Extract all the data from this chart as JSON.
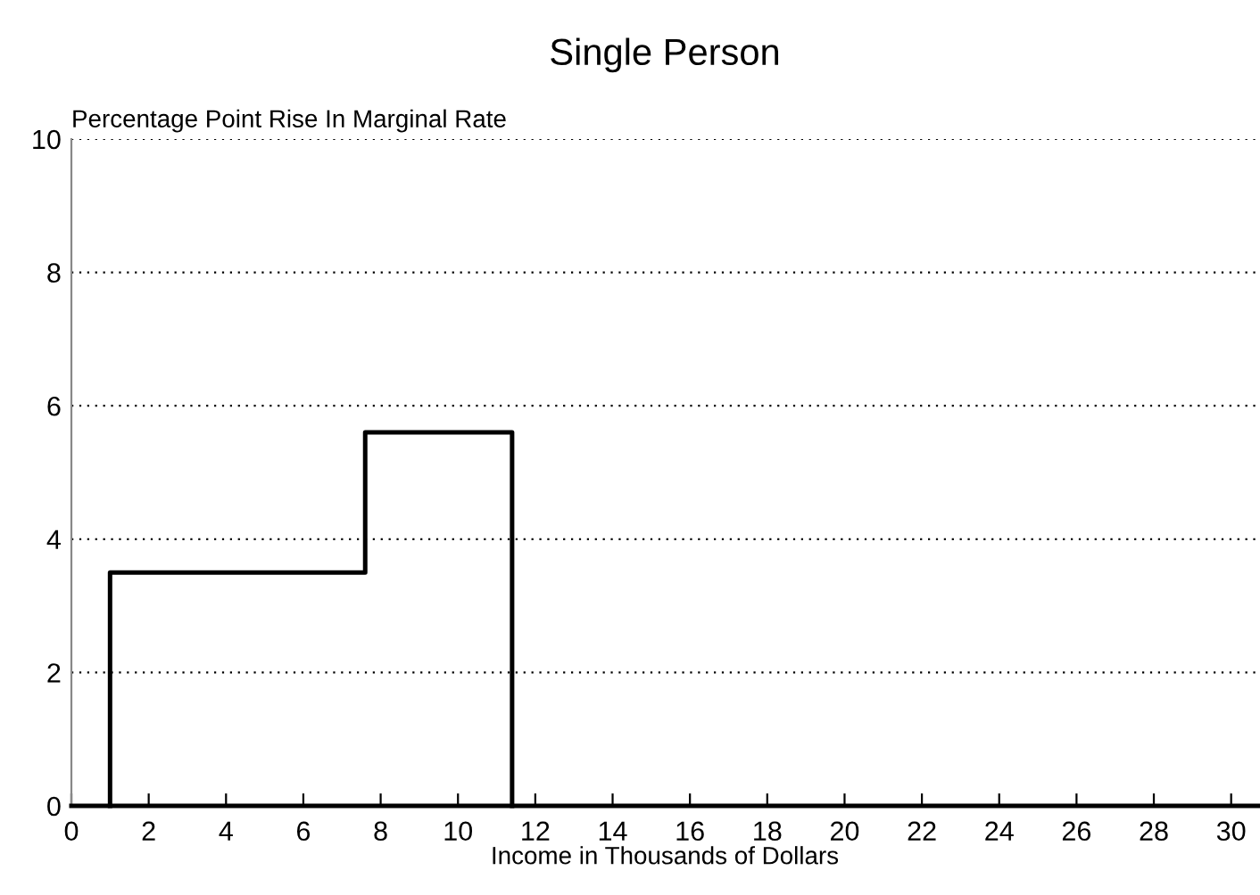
{
  "chart_data": {
    "type": "line",
    "title": "Single Person",
    "ylabel": "Percentage Point Rise In Marginal Rate",
    "xlabel": "Income in Thousands of Dollars",
    "series": [
      {
        "color": "#000000",
        "x": [
          1.0,
          1.0,
          7.6,
          7.6,
          11.4,
          11.4
        ],
        "values": [
          0,
          3.5,
          3.5,
          5.6,
          5.6,
          0
        ]
      }
    ],
    "xlim": [
      0,
      30.7
    ],
    "xticks": [
      0,
      2,
      4,
      6,
      8,
      10,
      12,
      14,
      16,
      18,
      20,
      22,
      24,
      26,
      28,
      30
    ],
    "ylim": [
      0,
      10
    ],
    "yticks": [
      0,
      2,
      4,
      6,
      8,
      10
    ],
    "grid": "y",
    "marker": "none",
    "line_style": "solid"
  }
}
